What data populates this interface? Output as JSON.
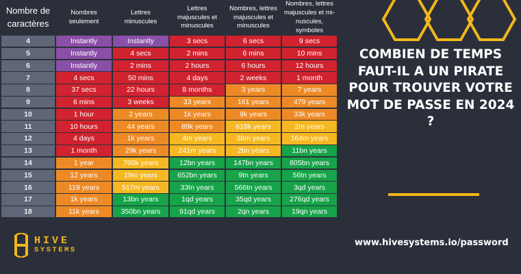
{
  "headers": [
    "Nombre de caractères",
    "Nombres seulement",
    "Lettres minuscules",
    "Lettres majuscules et minuscules",
    "Nombres, lettres majuscules et minuscules",
    "Nombres, lettres majuscules et mi-nuscules, symboles"
  ],
  "rows": [
    {
      "length": "4",
      "values": [
        "Instantly",
        "Instantly",
        "3 secs",
        "6 secs",
        "9 secs"
      ]
    },
    {
      "length": "5",
      "values": [
        "Instantly",
        "4 secs",
        "2 mins",
        "6 mins",
        "10 mins"
      ]
    },
    {
      "length": "6",
      "values": [
        "Instantly",
        "2 mins",
        "2 hours",
        "6 hours",
        "12 hours"
      ]
    },
    {
      "length": "7",
      "values": [
        "4 secs",
        "50 mins",
        "4 days",
        "2 weeks",
        "1 month"
      ]
    },
    {
      "length": "8",
      "values": [
        "37 secs",
        "22 hours",
        "8 months",
        "3 years",
        "7 years"
      ]
    },
    {
      "length": "9",
      "values": [
        "6 mins",
        "3 weeks",
        "33 years",
        "161 years",
        "479 years"
      ]
    },
    {
      "length": "10",
      "values": [
        "1 hour",
        "2 years",
        "1k years",
        "9k years",
        "33k years"
      ]
    },
    {
      "length": "11",
      "values": [
        "10 hours",
        "44 years",
        "89k years",
        "618k years",
        "2m years"
      ]
    },
    {
      "length": "12",
      "values": [
        "4 days",
        "1k years",
        "4m years",
        "38m years",
        "164m years"
      ]
    },
    {
      "length": "13",
      "values": [
        "1 month",
        "29k years",
        "241m years",
        "2bn years",
        "11bn years"
      ]
    },
    {
      "length": "14",
      "values": [
        "1 year",
        "766k years",
        "12bn years",
        "147bn years",
        "805bn years"
      ]
    },
    {
      "length": "15",
      "values": [
        "12 years",
        "19m years",
        "652bn years",
        "9tn years",
        "56tn years"
      ]
    },
    {
      "length": "16",
      "values": [
        "119 years",
        "517m years",
        "33tn years",
        "566tn years",
        "3qd years"
      ]
    },
    {
      "length": "17",
      "values": [
        "1k years",
        "13bn years",
        "1qd years",
        "35qd years",
        "276qd years"
      ]
    },
    {
      "length": "18",
      "values": [
        "11k years",
        "350bn years",
        "91qd years",
        "2qn years",
        "19qn years"
      ]
    }
  ],
  "levels": [
    [
      "P",
      "P",
      "R",
      "R",
      "R"
    ],
    [
      "P",
      "R",
      "R",
      "R",
      "R"
    ],
    [
      "P",
      "R",
      "R",
      "R",
      "R"
    ],
    [
      "R",
      "R",
      "R",
      "R",
      "R"
    ],
    [
      "R",
      "R",
      "R",
      "O",
      "O"
    ],
    [
      "R",
      "R",
      "O",
      "O",
      "O"
    ],
    [
      "R",
      "O",
      "O",
      "O",
      "O"
    ],
    [
      "R",
      "O",
      "O",
      "Y",
      "Y"
    ],
    [
      "R",
      "O",
      "Y",
      "Y",
      "Y"
    ],
    [
      "R",
      "O",
      "Y",
      "Y",
      "G"
    ],
    [
      "O",
      "Y",
      "G",
      "G",
      "G"
    ],
    [
      "O",
      "Y",
      "G",
      "G",
      "G"
    ],
    [
      "O",
      "Y",
      "G",
      "G",
      "G"
    ],
    [
      "O",
      "G",
      "G",
      "G",
      "G"
    ],
    [
      "O",
      "G",
      "G",
      "G",
      "G"
    ]
  ],
  "colors": {
    "P": "#8a4fa6",
    "R": "#d0232f",
    "O": "#ee8a25",
    "Y": "#f5b722",
    "G": "#17a34a",
    "accent": "#f2b71b"
  },
  "headline": "COMBIEN DE TEMPS FAUT-IL A UN PIRATE POUR TROUVER VOTRE MOT DE PASSE EN 2024 ?",
  "url": "www.hivesystems.io/password",
  "logo": {
    "line1": "HIVE",
    "line2": "SYSTEMS",
    "icon": "hive-logo-icon"
  }
}
